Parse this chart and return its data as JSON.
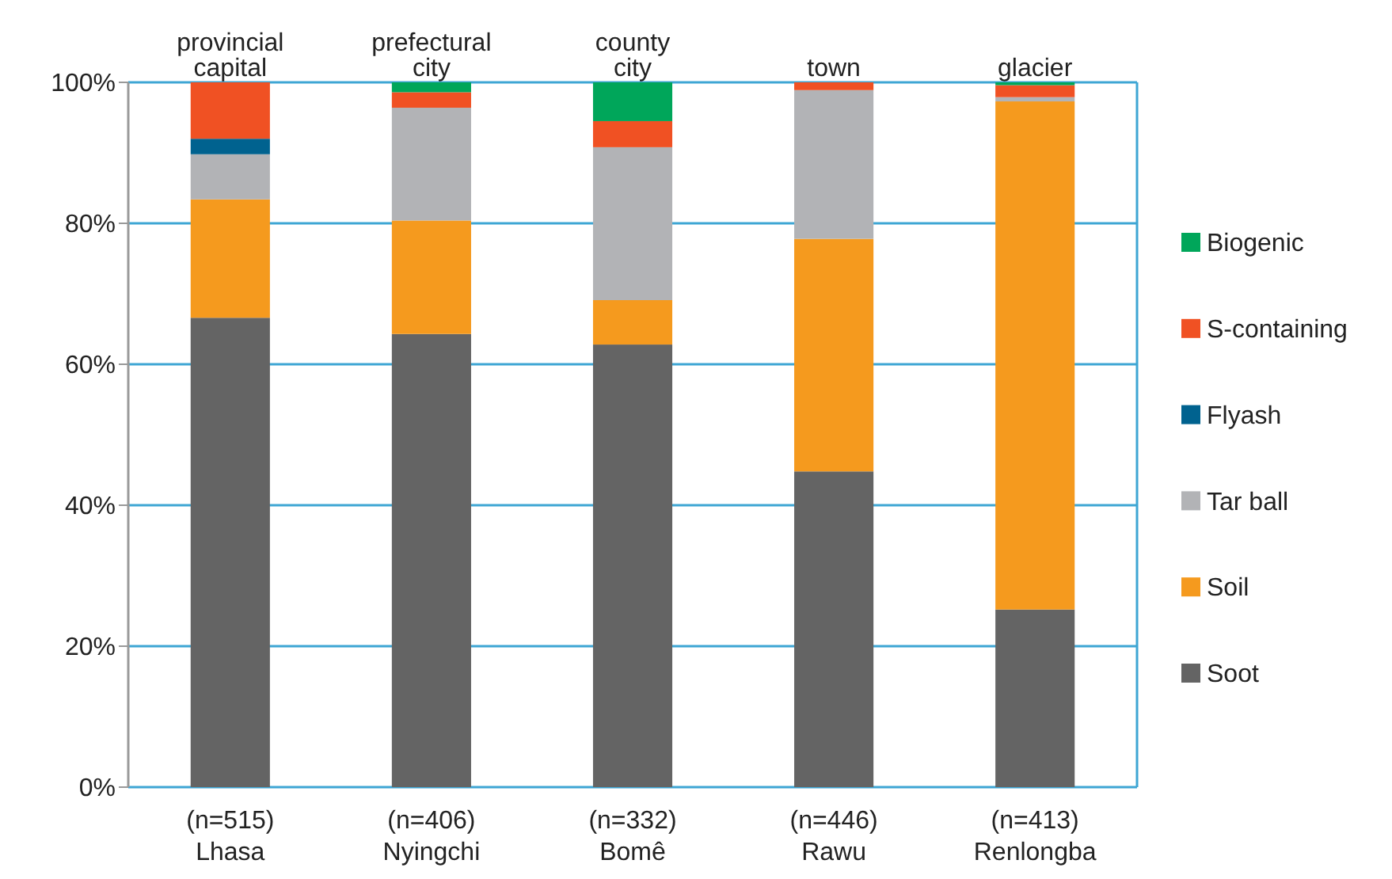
{
  "chart_data": {
    "type": "bar",
    "stacked": true,
    "categories": [
      "(n=515)\nLhasa",
      "(n=406)\nNyingchi",
      "(n=332)\nBomê",
      "(n=446)\nRawu",
      "(n=413)\nRenlongba"
    ],
    "series": [
      {
        "name": "Soot",
        "color": "#646464",
        "values": [
          66.6,
          64.3,
          62.8,
          44.8,
          25.2
        ]
      },
      {
        "name": "Soil",
        "color": "#f59a1e",
        "values": [
          16.8,
          16.1,
          6.3,
          33.0,
          72.1
        ]
      },
      {
        "name": "Tar ball",
        "color": "#b2b3b6",
        "values": [
          6.4,
          16.0,
          21.7,
          21.1,
          0.6
        ]
      },
      {
        "name": "Flyash",
        "color": "#00628f",
        "values": [
          2.2,
          0,
          0,
          0,
          0
        ]
      },
      {
        "name": "S-containing",
        "color": "#f05123",
        "values": [
          8.0,
          2.2,
          3.7,
          1.1,
          1.7
        ]
      },
      {
        "name": "Biogenic",
        "color": "#00a65a",
        "values": [
          0,
          1.4,
          5.5,
          0,
          0.4
        ]
      }
    ],
    "ylim": [
      0,
      100
    ],
    "yticks": [
      {
        "value": 0,
        "label": "0%"
      },
      {
        "value": 20,
        "label": "20%"
      },
      {
        "value": 40,
        "label": "40%"
      },
      {
        "value": 60,
        "label": "60%"
      },
      {
        "value": 80,
        "label": "80%"
      },
      {
        "value": 100,
        "label": "100%"
      }
    ],
    "grid": "y",
    "legend": "right",
    "annotations": [
      {
        "text": "provincial\ncapital",
        "x": "(n=515)\nLhasa",
        "y": 100
      },
      {
        "text": "prefectural\ncity",
        "x": "(n=406)\nNyingchi",
        "y": 100
      },
      {
        "text": "county\ncity",
        "x": "(n=332)\nBomê",
        "y": 100
      },
      {
        "text": "town",
        "x": "(n=446)\nRawu",
        "y": 100
      },
      {
        "text": "glacier",
        "x": "(n=413)\nRenlongba",
        "y": 100
      }
    ]
  }
}
